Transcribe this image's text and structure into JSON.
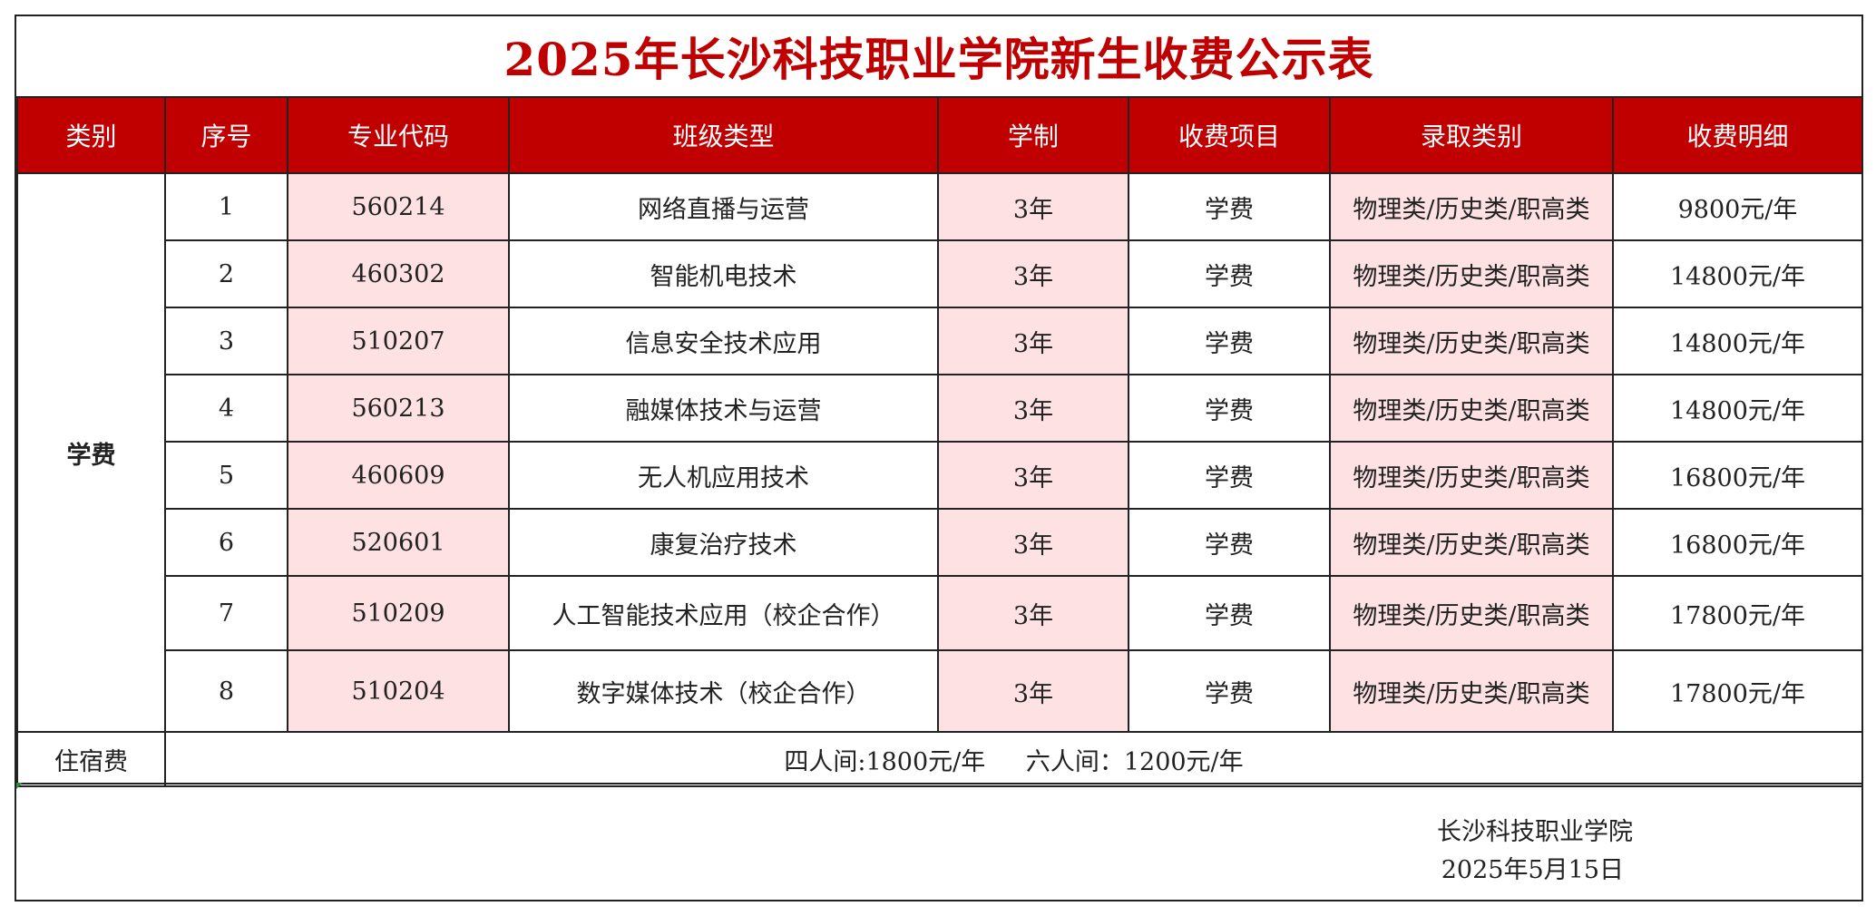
{
  "title": "2025年长沙科技职业学院新生收费公示表",
  "headers": [
    "类别",
    "序号",
    "专业代码",
    "班级类型",
    "学制",
    "收费项目",
    "录取类别",
    "收费明细"
  ],
  "category_tuition": "学费",
  "rows": [
    {
      "no": "1",
      "code": "560214",
      "major": "网络直播与运营",
      "duration": "3年",
      "item": "学费",
      "admission": "物理类/历史类/职高类",
      "fee": "9800元/年"
    },
    {
      "no": "2",
      "code": "460302",
      "major": "智能机电技术",
      "duration": "3年",
      "item": "学费",
      "admission": "物理类/历史类/职高类",
      "fee": "14800元/年"
    },
    {
      "no": "3",
      "code": "510207",
      "major": "信息安全技术应用",
      "duration": "3年",
      "item": "学费",
      "admission": "物理类/历史类/职高类",
      "fee": "14800元/年"
    },
    {
      "no": "4",
      "code": "560213",
      "major": "融媒体技术与运营",
      "duration": "3年",
      "item": "学费",
      "admission": "物理类/历史类/职高类",
      "fee": "14800元/年"
    },
    {
      "no": "5",
      "code": "460609",
      "major": "无人机应用技术",
      "duration": "3年",
      "item": "学费",
      "admission": "物理类/历史类/职高类",
      "fee": "16800元/年"
    },
    {
      "no": "6",
      "code": "520601",
      "major": "康复治疗技术",
      "duration": "3年",
      "item": "学费",
      "admission": "物理类/历史类/职高类",
      "fee": "16800元/年"
    },
    {
      "no": "7",
      "code": "510209",
      "major": "人工智能技术应用（校企合作）",
      "duration": "3年",
      "item": "学费",
      "admission": "物理类/历史类/职高类",
      "fee": "17800元/年"
    },
    {
      "no": "8",
      "code": "510204",
      "major": "数字媒体技术（校企合作）",
      "duration": "3年",
      "item": "学费",
      "admission": "物理类/历史类/职高类",
      "fee": "17800元/年"
    }
  ],
  "lodging": {
    "label": "住宿费",
    "four_person": "四人间:1800元/年",
    "six_person": "六人间：1200元/年"
  },
  "footer": {
    "issuer": "长沙科技职业学院",
    "date": "2025年5月15日"
  },
  "colors": {
    "header_bg": "#c00000",
    "title_text": "#c00000",
    "highlight_cell": "#fde1e3"
  }
}
